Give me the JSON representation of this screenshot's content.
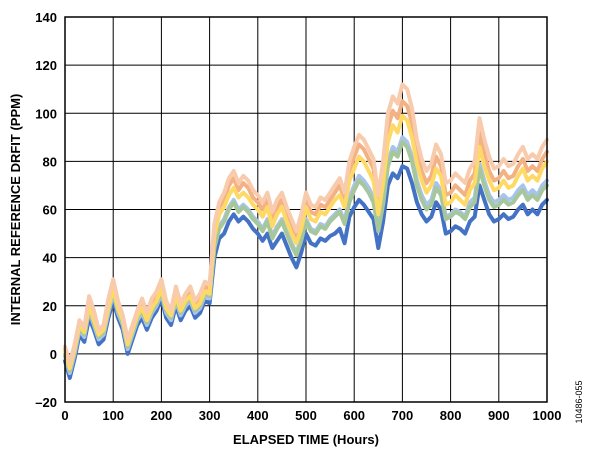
{
  "chart_data": {
    "type": "line",
    "xlabel": "ELAPSED TIME (Hours)",
    "ylabel": "INTERNAL REFERENCE DRFIT (PPM)",
    "xlim": [
      0,
      1000
    ],
    "ylim": [
      -20,
      140
    ],
    "xticks": [
      "0",
      "100",
      "200",
      "300",
      "400",
      "500",
      "600",
      "700",
      "800",
      "900",
      "1000"
    ],
    "yticks": [
      "–20",
      "0",
      "20",
      "40",
      "60",
      "80",
      "100",
      "120",
      "140"
    ],
    "grid": true,
    "x": [
      0,
      10,
      20,
      30,
      40,
      50,
      60,
      70,
      80,
      90,
      100,
      110,
      120,
      130,
      140,
      150,
      160,
      170,
      180,
      190,
      200,
      210,
      220,
      230,
      240,
      250,
      260,
      270,
      280,
      290,
      300,
      310,
      320,
      330,
      340,
      350,
      360,
      370,
      380,
      390,
      400,
      410,
      420,
      430,
      440,
      450,
      460,
      470,
      480,
      490,
      500,
      510,
      520,
      530,
      540,
      550,
      560,
      570,
      580,
      590,
      600,
      610,
      620,
      630,
      640,
      650,
      660,
      670,
      680,
      690,
      700,
      710,
      720,
      730,
      740,
      750,
      760,
      770,
      780,
      790,
      800,
      810,
      820,
      830,
      840,
      850,
      860,
      870,
      880,
      890,
      900,
      910,
      920,
      930,
      940,
      950,
      960,
      970,
      980,
      990,
      1000
    ],
    "series": [
      {
        "color": "#4472c4",
        "values": [
          -3,
          -10,
          -2,
          8,
          5,
          15,
          10,
          4,
          6,
          15,
          22,
          15,
          10,
          0,
          6,
          12,
          15,
          10,
          15,
          18,
          23,
          15,
          12,
          20,
          14,
          18,
          20,
          15,
          17,
          22,
          21,
          40,
          48,
          50,
          55,
          58,
          55,
          57,
          55,
          52,
          50,
          47,
          50,
          44,
          47,
          50,
          45,
          40,
          36,
          42,
          50,
          46,
          45,
          48,
          47,
          49,
          50,
          52,
          46,
          57,
          61,
          64,
          62,
          59,
          56,
          44,
          55,
          70,
          75,
          73,
          78,
          77,
          71,
          63,
          58,
          55,
          57,
          63,
          60,
          50,
          51,
          53,
          52,
          50,
          55,
          57,
          70,
          64,
          58,
          55,
          56,
          58,
          56,
          57,
          60,
          62,
          58,
          60,
          58,
          62,
          64
        ]
      },
      {
        "color": "#a9c4eb",
        "values": [
          -1,
          -8,
          0,
          10,
          7,
          18,
          12,
          6,
          8,
          17,
          25,
          17,
          12,
          2,
          8,
          14,
          17,
          12,
          17,
          20,
          25,
          17,
          14,
          22,
          16,
          20,
          22,
          17,
          19,
          24,
          23,
          45,
          53,
          56,
          61,
          64,
          60,
          62,
          60,
          57,
          55,
          52,
          56,
          49,
          53,
          56,
          51,
          46,
          42,
          48,
          56,
          52,
          51,
          54,
          53,
          56,
          58,
          60,
          55,
          65,
          70,
          74,
          72,
          69,
          65,
          52,
          63,
          80,
          86,
          84,
          90,
          88,
          82,
          72,
          66,
          62,
          64,
          71,
          68,
          57,
          58,
          60,
          59,
          57,
          63,
          65,
          79,
          72,
          66,
          63,
          64,
          66,
          64,
          65,
          68,
          70,
          66,
          68,
          66,
          70,
          72
        ]
      },
      {
        "color": "#a6c79b",
        "values": [
          0,
          -7,
          1,
          11,
          8,
          19,
          13,
          7,
          9,
          18,
          26,
          18,
          13,
          3,
          9,
          15,
          18,
          13,
          18,
          21,
          26,
          18,
          15,
          23,
          17,
          21,
          23,
          18,
          20,
          25,
          24,
          44,
          52,
          55,
          60,
          63,
          59,
          61,
          59,
          56,
          54,
          51,
          55,
          48,
          52,
          55,
          50,
          45,
          41,
          47,
          55,
          51,
          50,
          53,
          52,
          55,
          57,
          59,
          54,
          63,
          68,
          72,
          70,
          67,
          63,
          51,
          62,
          78,
          84,
          82,
          88,
          86,
          80,
          70,
          64,
          60,
          62,
          69,
          66,
          56,
          57,
          59,
          58,
          56,
          61,
          63,
          77,
          70,
          64,
          61,
          62,
          64,
          62,
          63,
          66,
          68,
          64,
          66,
          64,
          68,
          70
        ]
      },
      {
        "color": "#f4b183",
        "values": [
          2,
          -5,
          3,
          13,
          10,
          22,
          16,
          9,
          11,
          21,
          29,
          20,
          15,
          5,
          11,
          17,
          21,
          15,
          21,
          24,
          29,
          20,
          17,
          26,
          19,
          23,
          26,
          20,
          23,
          28,
          27,
          52,
          61,
          64,
          70,
          73,
          68,
          71,
          69,
          65,
          63,
          60,
          64,
          56,
          61,
          64,
          58,
          53,
          48,
          55,
          64,
          59,
          58,
          62,
          61,
          64,
          67,
          70,
          64,
          76,
          82,
          87,
          85,
          81,
          77,
          62,
          75,
          94,
          101,
          98,
          105,
          103,
          96,
          84,
          76,
          71,
          74,
          82,
          78,
          66,
          67,
          70,
          68,
          66,
          72,
          75,
          92,
          83,
          76,
          72,
          73,
          76,
          73,
          74,
          78,
          81,
          76,
          78,
          76,
          81,
          84
        ]
      },
      {
        "color": "#ffd966",
        "values": [
          1,
          -6,
          2,
          12,
          9,
          20,
          14,
          8,
          10,
          19,
          27,
          19,
          14,
          4,
          10,
          16,
          19,
          14,
          19,
          22,
          27,
          19,
          16,
          24,
          18,
          22,
          24,
          19,
          21,
          26,
          25,
          49,
          58,
          61,
          66,
          69,
          65,
          67,
          65,
          62,
          60,
          57,
          61,
          53,
          58,
          61,
          55,
          50,
          46,
          52,
          61,
          56,
          55,
          59,
          58,
          61,
          64,
          66,
          61,
          72,
          77,
          82,
          80,
          76,
          72,
          58,
          71,
          88,
          95,
          92,
          99,
          97,
          90,
          79,
          72,
          67,
          70,
          77,
          74,
          62,
          63,
          66,
          64,
          62,
          68,
          71,
          86,
          78,
          72,
          68,
          69,
          72,
          69,
          70,
          74,
          77,
          72,
          74,
          72,
          77,
          80
        ]
      },
      {
        "color": "#f8cbad",
        "values": [
          3,
          -4,
          4,
          14,
          11,
          24,
          18,
          10,
          12,
          23,
          31,
          22,
          16,
          6,
          12,
          18,
          23,
          17,
          23,
          26,
          31,
          22,
          18,
          28,
          21,
          25,
          28,
          22,
          25,
          30,
          29,
          54,
          63,
          67,
          73,
          76,
          71,
          74,
          72,
          68,
          66,
          63,
          67,
          59,
          64,
          67,
          61,
          56,
          51,
          58,
          67,
          62,
          61,
          65,
          64,
          67,
          70,
          73,
          67,
          80,
          86,
          91,
          89,
          85,
          81,
          66,
          80,
          100,
          107,
          104,
          112,
          110,
          102,
          89,
          81,
          76,
          79,
          87,
          83,
          71,
          72,
          75,
          73,
          71,
          77,
          80,
          98,
          89,
          82,
          77,
          78,
          81,
          78,
          79,
          83,
          86,
          81,
          83,
          81,
          86,
          89
        ]
      }
    ]
  },
  "figure_id": "10486-055"
}
